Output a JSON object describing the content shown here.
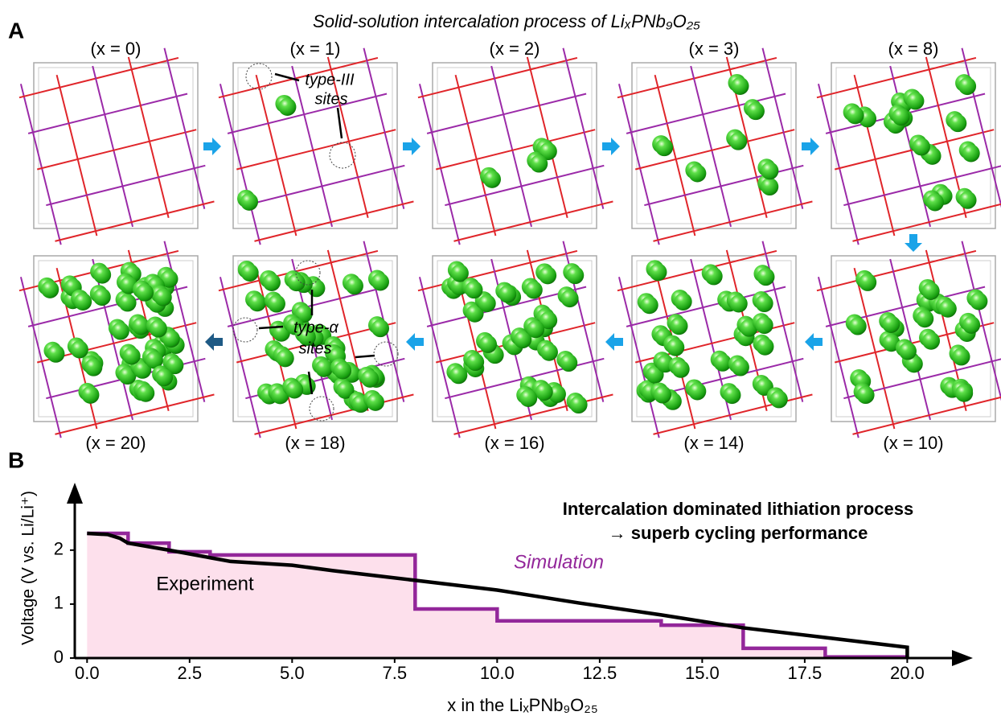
{
  "panel_a": {
    "letter": "A",
    "title": "Solid-solution intercalation process of LiₓPNb₉O₂₅",
    "frames": [
      "(x = 0)",
      "(x = 1)",
      "(x = 2)",
      "(x = 3)",
      "(x = 8)",
      "(x = 10)",
      "(x = 14)",
      "(x = 16)",
      "(x = 18)",
      "(x = 20)"
    ],
    "site_labels": [
      "type-III",
      "sites",
      "type-α",
      "sites"
    ]
  },
  "chart_data": {
    "type": "line",
    "letter": "B",
    "x_label": "x in the LiₓPNb₉O₂₅",
    "y_label": "Voltage (V vs. Li/Li⁺)",
    "annotations": [
      "Intercalation dominated lithiation process",
      "→ superb cycling performance"
    ],
    "xlim": [
      -0.3,
      21.6
    ],
    "ylim": [
      0,
      3.25
    ],
    "xticks": [
      {
        "value": 0,
        "label": "0.0"
      },
      2.5,
      {
        "value": 5,
        "label": "5.0"
      },
      7.5,
      {
        "value": 10,
        "label": "10.0"
      },
      12.5,
      {
        "value": 15,
        "label": "15.0"
      },
      17.5,
      {
        "value": 20,
        "label": "20.0"
      }
    ],
    "yticks": [
      0,
      1,
      2
    ],
    "series": [
      {
        "name": "Simulation",
        "color": "#93279a",
        "step": true,
        "fill": "#fde0ec",
        "x": [
          0,
          1,
          2,
          3,
          8,
          10,
          14,
          16,
          18,
          20
        ],
        "values": [
          2.31,
          2.13,
          1.97,
          1.91,
          0.91,
          0.69,
          0.61,
          0.18,
          0.02,
          0.02
        ]
      },
      {
        "name": "Experiment",
        "color": "#000000",
        "step": false,
        "x": [
          0,
          0.5,
          0.8,
          1,
          2,
          3,
          3.5,
          5,
          6,
          8,
          10,
          12,
          14,
          16,
          18,
          20,
          20
        ],
        "values": [
          2.31,
          2.29,
          2.22,
          2.13,
          2.0,
          1.86,
          1.79,
          1.72,
          1.62,
          1.44,
          1.26,
          1.02,
          0.8,
          0.56,
          0.38,
          0.2,
          0
        ]
      }
    ]
  }
}
